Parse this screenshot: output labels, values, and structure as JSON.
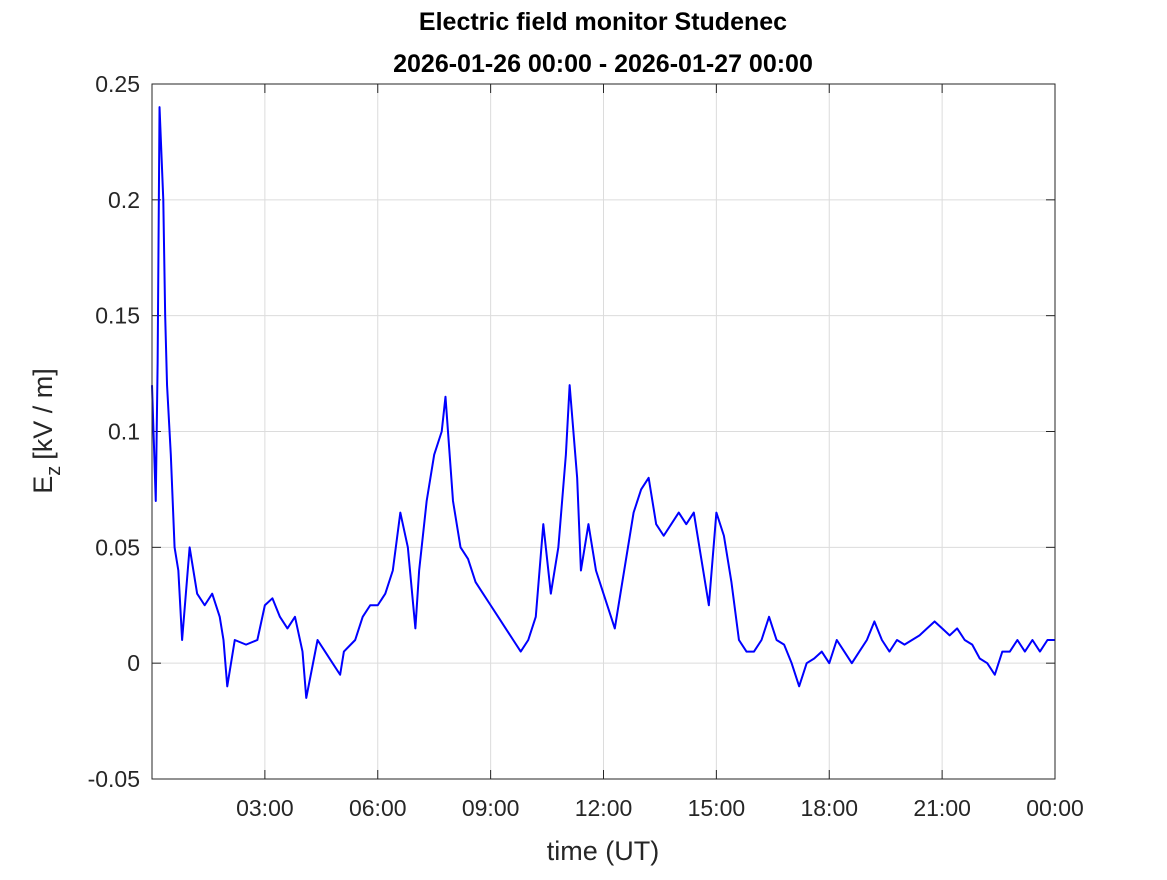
{
  "chart_data": {
    "type": "line",
    "title": "Electric field monitor Studenec",
    "subtitle": "2026-01-26 00:00 - 2026-01-27 00:00",
    "xlabel": "time (UT)",
    "ylabel": {
      "symbol": "E",
      "subscript": "z",
      "unit": "[kV / m]"
    },
    "color": "#0000ff",
    "x": [
      0.0,
      0.1,
      0.15,
      0.2,
      0.3,
      0.35,
      0.4,
      0.5,
      0.6,
      0.7,
      0.8,
      0.9,
      1.0,
      1.2,
      1.4,
      1.6,
      1.8,
      1.9,
      2.0,
      2.2,
      2.5,
      2.8,
      3.0,
      3.2,
      3.4,
      3.6,
      3.8,
      4.0,
      4.1,
      4.4,
      4.6,
      4.8,
      5.0,
      5.1,
      5.4,
      5.6,
      5.8,
      6.0,
      6.2,
      6.4,
      6.6,
      6.8,
      7.0,
      7.1,
      7.3,
      7.5,
      7.7,
      7.8,
      8.0,
      8.2,
      8.4,
      8.6,
      8.8,
      9.0,
      9.2,
      9.4,
      9.6,
      9.8,
      10.0,
      10.2,
      10.4,
      10.6,
      10.8,
      11.0,
      11.1,
      11.3,
      11.4,
      11.6,
      11.8,
      12.0,
      12.2,
      12.3,
      12.5,
      12.8,
      13.0,
      13.2,
      13.4,
      13.6,
      13.8,
      14.0,
      14.2,
      14.4,
      14.6,
      14.8,
      15.0,
      15.2,
      15.4,
      15.6,
      15.8,
      16.0,
      16.2,
      16.4,
      16.6,
      16.8,
      17.0,
      17.2,
      17.4,
      17.6,
      17.8,
      18.0,
      18.2,
      18.4,
      18.6,
      18.8,
      19.0,
      19.2,
      19.4,
      19.6,
      19.8,
      20.0,
      20.2,
      20.4,
      20.6,
      20.8,
      21.0,
      21.2,
      21.4,
      21.6,
      21.8,
      22.0,
      22.2,
      22.4,
      22.6,
      22.8,
      23.0,
      23.2,
      23.4,
      23.6,
      23.8,
      24.0
    ],
    "values": [
      0.12,
      0.07,
      0.13,
      0.24,
      0.2,
      0.15,
      0.12,
      0.09,
      0.05,
      0.04,
      0.01,
      0.03,
      0.05,
      0.03,
      0.025,
      0.03,
      0.02,
      0.01,
      -0.01,
      0.01,
      0.008,
      0.01,
      0.025,
      0.028,
      0.02,
      0.015,
      0.02,
      0.005,
      -0.015,
      0.01,
      0.005,
      0.0,
      -0.005,
      0.005,
      0.01,
      0.02,
      0.025,
      0.025,
      0.03,
      0.04,
      0.065,
      0.05,
      0.015,
      0.04,
      0.07,
      0.09,
      0.1,
      0.115,
      0.07,
      0.05,
      0.045,
      0.035,
      0.03,
      0.025,
      0.02,
      0.015,
      0.01,
      0.005,
      0.01,
      0.02,
      0.06,
      0.03,
      0.05,
      0.09,
      0.12,
      0.08,
      0.04,
      0.06,
      0.04,
      0.03,
      0.02,
      0.015,
      0.035,
      0.065,
      0.075,
      0.08,
      0.06,
      0.055,
      0.06,
      0.065,
      0.06,
      0.065,
      0.045,
      0.025,
      0.065,
      0.055,
      0.035,
      0.01,
      0.005,
      0.005,
      0.01,
      0.02,
      0.01,
      0.008,
      0.0,
      -0.01,
      0.0,
      0.002,
      0.005,
      0.0,
      0.01,
      0.005,
      0.0,
      0.005,
      0.01,
      0.018,
      0.01,
      0.005,
      0.01,
      0.008,
      0.01,
      0.012,
      0.015,
      0.018,
      0.015,
      0.012,
      0.015,
      0.01,
      0.008,
      0.002,
      0.0,
      -0.005,
      0.005,
      0.005,
      0.01,
      0.005,
      0.01,
      0.005,
      0.01,
      0.01
    ],
    "xlim": [
      0,
      24
    ],
    "xticks": [
      {
        "value": 3,
        "label": "03:00"
      },
      {
        "value": 6,
        "label": "06:00"
      },
      {
        "value": 9,
        "label": "09:00"
      },
      {
        "value": 12,
        "label": "12:00"
      },
      {
        "value": 15,
        "label": "15:00"
      },
      {
        "value": 18,
        "label": "18:00"
      },
      {
        "value": 21,
        "label": "21:00"
      },
      {
        "value": 24,
        "label": "00:00"
      }
    ],
    "ylim": [
      -0.05,
      0.25
    ],
    "yticks": [
      -0.05,
      0,
      0.05,
      0.1,
      0.15,
      0.2,
      0.25
    ],
    "grid": true
  }
}
